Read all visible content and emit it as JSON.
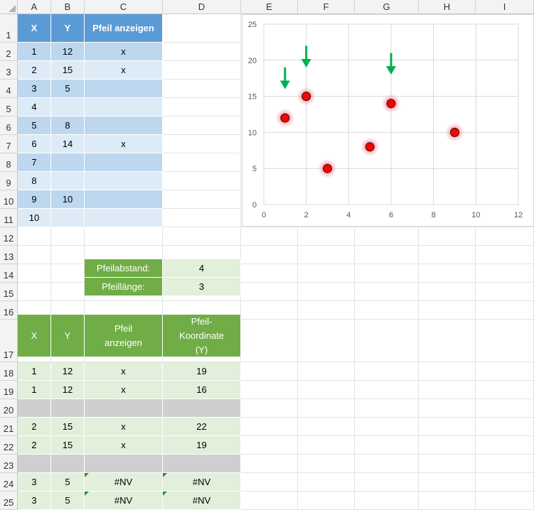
{
  "columns": [
    "A",
    "B",
    "C",
    "D",
    "E",
    "F",
    "G",
    "H",
    "I"
  ],
  "rows": [
    "1",
    "2",
    "3",
    "4",
    "5",
    "6",
    "7",
    "8",
    "9",
    "10",
    "11",
    "12",
    "13",
    "14",
    "15",
    "16",
    "17",
    "18",
    "19",
    "20",
    "21",
    "22",
    "23",
    "24",
    "25"
  ],
  "top_table": {
    "headers": [
      "X",
      "Y",
      "Pfeil anzeigen"
    ],
    "rows": [
      [
        "1",
        "12",
        "x"
      ],
      [
        "2",
        "15",
        "x"
      ],
      [
        "3",
        "5",
        ""
      ],
      [
        "4",
        "",
        ""
      ],
      [
        "5",
        "8",
        ""
      ],
      [
        "6",
        "14",
        "x"
      ],
      [
        "7",
        "",
        ""
      ],
      [
        "8",
        "",
        ""
      ],
      [
        "9",
        "10",
        ""
      ],
      [
        "10",
        "",
        ""
      ]
    ]
  },
  "params": [
    {
      "label": "Pfeilabstand:",
      "value": "4"
    },
    {
      "label": "Pfeillänge:",
      "value": "3"
    }
  ],
  "bottom_table": {
    "headers": [
      "X",
      "Y",
      "Pfeil anzeigen",
      "Pfeil-Koordinate (Y)"
    ],
    "rows": [
      {
        "style": "data",
        "cells": [
          "1",
          "12",
          "x",
          "19"
        ]
      },
      {
        "style": "data",
        "cells": [
          "1",
          "12",
          "x",
          "16"
        ]
      },
      {
        "style": "gap",
        "cells": [
          "",
          "",
          "",
          ""
        ]
      },
      {
        "style": "data",
        "cells": [
          "2",
          "15",
          "x",
          "22"
        ]
      },
      {
        "style": "data",
        "cells": [
          "2",
          "15",
          "x",
          "19"
        ]
      },
      {
        "style": "gap",
        "cells": [
          "",
          "",
          "",
          ""
        ]
      },
      {
        "style": "err",
        "cells": [
          "3",
          "5",
          "#NV",
          "#NV"
        ]
      },
      {
        "style": "err",
        "cells": [
          "3",
          "5",
          "#NV",
          "#NV"
        ]
      }
    ]
  },
  "chart_data": {
    "type": "scatter",
    "title": "",
    "xlabel": "",
    "ylabel": "",
    "xlim": [
      0,
      12
    ],
    "ylim": [
      0,
      25
    ],
    "x_ticks": [
      "0",
      "2",
      "4",
      "6",
      "8",
      "10",
      "12"
    ],
    "y_ticks": [
      "0",
      "5",
      "10",
      "15",
      "20",
      "25"
    ],
    "grid": true,
    "legend": "none",
    "series": [
      {
        "marker": "circle",
        "color": "#ff0000",
        "points": [
          [
            1,
            12
          ],
          [
            2,
            15
          ],
          [
            3,
            5
          ],
          [
            5,
            8
          ],
          [
            6,
            14
          ],
          [
            9,
            10
          ]
        ]
      }
    ],
    "arrows": {
      "color": "#00b050",
      "segments": [
        [
          1,
          19,
          16
        ],
        [
          2,
          22,
          19
        ],
        [
          6,
          21,
          18
        ]
      ]
    }
  }
}
